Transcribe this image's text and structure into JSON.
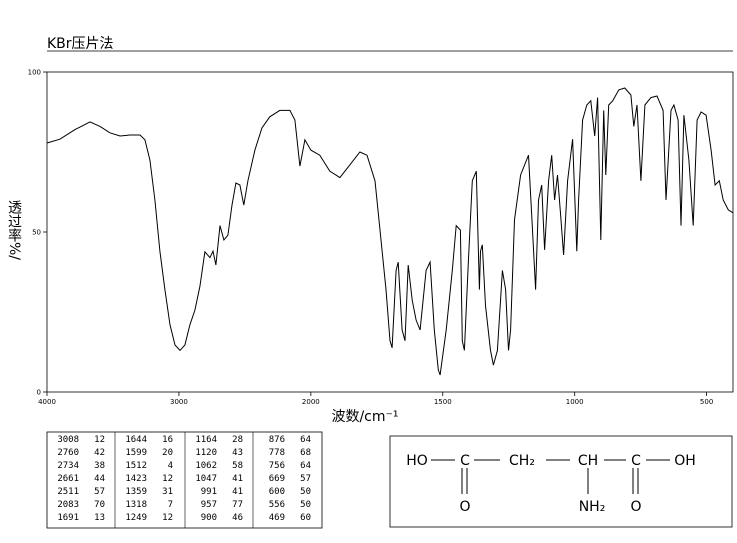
{
  "chart_data": {
    "type": "spectrum",
    "title": "KBr压片法",
    "x_label": "波数/cm⁻¹",
    "y_label": "透过率%/",
    "xlim": [
      4000,
      400
    ],
    "x_scale_change": {
      "at": 2000,
      "factor": 2
    },
    "xticks": [
      4000,
      3000,
      2000,
      1500,
      1000,
      500
    ],
    "ylim": [
      0,
      100
    ],
    "yticks": [
      0,
      50,
      100
    ],
    "color": "#000000",
    "x": [
      4000,
      3902,
      3788,
      3674,
      3598,
      3523,
      3447,
      3371,
      3295,
      3258,
      3220,
      3182,
      3144,
      3106,
      3068,
      3030,
      2992,
      2955,
      2917,
      2879,
      2841,
      2803,
      2765,
      2742,
      2720,
      2689,
      2659,
      2629,
      2598,
      2568,
      2538,
      2508,
      2477,
      2424,
      2371,
      2311,
      2235,
      2159,
      2121,
      2083,
      2045,
      2000,
      1966,
      1928,
      1890,
      1852,
      1814,
      1787,
      1757,
      1738,
      1715,
      1700,
      1692,
      1677,
      1669,
      1654,
      1643,
      1631,
      1616,
      1601,
      1586,
      1563,
      1548,
      1532,
      1517,
      1510,
      1487,
      1464,
      1449,
      1433,
      1426,
      1418,
      1403,
      1388,
      1373,
      1361,
      1357,
      1350,
      1338,
      1319,
      1308,
      1293,
      1274,
      1262,
      1251,
      1243,
      1228,
      1205,
      1175,
      1160,
      1148,
      1137,
      1125,
      1114,
      1099,
      1087,
      1076,
      1065,
      1053,
      1042,
      1027,
      1008,
      992,
      985,
      970,
      954,
      939,
      924,
      913,
      901,
      890,
      882,
      871,
      856,
      833,
      810,
      787,
      776,
      764,
      749,
      734,
      711,
      688,
      665,
      654,
      635,
      624,
      608,
      597,
      586,
      567,
      551,
      536,
      521,
      502,
      483,
      468,
      452,
      437,
      418,
      400
    ],
    "y": [
      77.8,
      79,
      82,
      84.4,
      83,
      81,
      80,
      80.3,
      80.3,
      78.8,
      72.5,
      60,
      44,
      32,
      21,
      14.7,
      13,
      14.7,
      21,
      25.6,
      33,
      43.8,
      42,
      44,
      39.7,
      52,
      47.5,
      49,
      58.4,
      65.3,
      64.7,
      58.4,
      66,
      75.6,
      82.5,
      86,
      88,
      88,
      85,
      70.6,
      78.8,
      75.6,
      74,
      69,
      67,
      71,
      75,
      74,
      66,
      50.6,
      32,
      16,
      13.8,
      38,
      40.6,
      19.4,
      16,
      39.7,
      28.7,
      22.5,
      19.4,
      38,
      40.6,
      19.4,
      6.9,
      5.3,
      19.4,
      38,
      52,
      50.6,
      16,
      13,
      41,
      66,
      69,
      32,
      44,
      46,
      27,
      13,
      8.4,
      13,
      38,
      32,
      13,
      19.4,
      53.8,
      67.8,
      74,
      50.6,
      32,
      60,
      64.7,
      44.4,
      66,
      74,
      60,
      67.8,
      55,
      42.8,
      66,
      79,
      44,
      60,
      85,
      89.7,
      91,
      80,
      92,
      47.5,
      88,
      67.8,
      89.7,
      91,
      94.4,
      95,
      92.8,
      83,
      89.7,
      66,
      89.7,
      92,
      92.5,
      88,
      60,
      88,
      89.7,
      85,
      52,
      86.5,
      72.5,
      52,
      85,
      87.5,
      86.5,
      75.6,
      64.7,
      66,
      60,
      56.9,
      56
    ]
  },
  "peak_table": {
    "columns": [
      [
        [
          3008,
          12
        ],
        [
          2760,
          42
        ],
        [
          2734,
          38
        ],
        [
          2661,
          44
        ],
        [
          2511,
          57
        ],
        [
          2083,
          70
        ],
        [
          1691,
          13
        ]
      ],
      [
        [
          1644,
          16
        ],
        [
          1599,
          20
        ],
        [
          1512,
          4
        ],
        [
          1423,
          12
        ],
        [
          1359,
          31
        ],
        [
          1318,
          7
        ],
        [
          1249,
          12
        ]
      ],
      [
        [
          1164,
          28
        ],
        [
          1120,
          43
        ],
        [
          1062,
          58
        ],
        [
          1047,
          41
        ],
        [
          991,
          41
        ],
        [
          957,
          77
        ],
        [
          900,
          46
        ]
      ],
      [
        [
          876,
          64
        ],
        [
          778,
          68
        ],
        [
          756,
          64
        ],
        [
          669,
          57
        ],
        [
          600,
          50
        ],
        [
          556,
          50
        ],
        [
          469,
          60
        ]
      ]
    ]
  },
  "structure": {
    "chain": [
      "HO",
      "C",
      "CH₂",
      "CH",
      "C",
      "OH"
    ],
    "below": [
      "O",
      "NH₂",
      "O"
    ]
  }
}
